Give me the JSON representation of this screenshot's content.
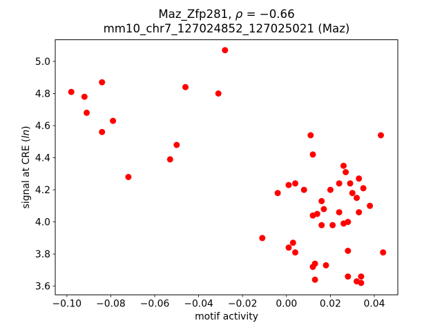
{
  "chart_data": {
    "type": "scatter",
    "title": "Maz_Zfp281, ρ = −0.66",
    "title_parts": {
      "prefix": "Maz_Zfp281, ",
      "rho": "ρ",
      "suffix": " = −0.66"
    },
    "subtitle": "mm10_chr7_127024852_127025021 (Maz)",
    "xlabel": "motif activity",
    "ylabel": "signal at CRE (ln)",
    "ylabel_parts": {
      "prefix": "signal at CRE (",
      "italic": "ln",
      "suffix": ")"
    },
    "marker_color": "#ff0000",
    "axis_color": "#000000",
    "grid": false,
    "legend": null,
    "xlim": [
      -0.1053,
      0.0507
    ],
    "ylim": [
      3.546,
      5.135
    ],
    "xtick_values": [
      -0.1,
      -0.08,
      -0.06,
      -0.04,
      -0.02,
      0.0,
      0.02,
      0.04
    ],
    "xtick_labels": [
      "−0.10",
      "−0.08",
      "−0.06",
      "−0.04",
      "−0.02",
      "0.00",
      "0.02",
      "0.04"
    ],
    "ytick_values": [
      3.6,
      3.8,
      4.0,
      4.2,
      4.4,
      4.6,
      4.8,
      5.0
    ],
    "ytick_labels": [
      "3.6",
      "3.8",
      "4.0",
      "4.2",
      "4.4",
      "4.6",
      "4.8",
      "5.0"
    ],
    "points": [
      [
        -0.098,
        4.81
      ],
      [
        -0.092,
        4.78
      ],
      [
        -0.091,
        4.68
      ],
      [
        -0.084,
        4.87
      ],
      [
        -0.084,
        4.56
      ],
      [
        -0.079,
        4.63
      ],
      [
        -0.072,
        4.28
      ],
      [
        -0.053,
        4.39
      ],
      [
        -0.05,
        4.48
      ],
      [
        -0.046,
        4.84
      ],
      [
        -0.031,
        4.8
      ],
      [
        -0.028,
        5.07
      ],
      [
        -0.011,
        3.9
      ],
      [
        -0.004,
        4.18
      ],
      [
        0.001,
        4.23
      ],
      [
        0.004,
        4.24
      ],
      [
        0.008,
        4.2
      ],
      [
        0.011,
        4.54
      ],
      [
        0.012,
        4.42
      ],
      [
        0.016,
        4.13
      ],
      [
        0.02,
        4.2
      ],
      [
        0.024,
        4.24
      ],
      [
        0.029,
        4.24
      ],
      [
        0.033,
        4.27
      ],
      [
        0.035,
        4.21
      ],
      [
        0.026,
        4.35
      ],
      [
        0.027,
        4.31
      ],
      [
        0.03,
        4.18
      ],
      [
        0.032,
        4.15
      ],
      [
        0.038,
        4.1
      ],
      [
        0.017,
        4.08
      ],
      [
        0.024,
        4.06
      ],
      [
        0.033,
        4.06
      ],
      [
        0.014,
        4.05
      ],
      [
        0.012,
        4.04
      ],
      [
        0.016,
        3.98
      ],
      [
        0.021,
        3.98
      ],
      [
        0.026,
        3.99
      ],
      [
        0.028,
        4.0
      ],
      [
        0.003,
        3.87
      ],
      [
        0.001,
        3.84
      ],
      [
        0.004,
        3.81
      ],
      [
        0.013,
        3.74
      ],
      [
        0.012,
        3.72
      ],
      [
        0.018,
        3.73
      ],
      [
        0.013,
        3.64
      ],
      [
        0.028,
        3.82
      ],
      [
        0.044,
        3.81
      ],
      [
        0.028,
        3.66
      ],
      [
        0.034,
        3.66
      ],
      [
        0.032,
        3.63
      ],
      [
        0.034,
        3.62
      ],
      [
        0.043,
        4.54
      ]
    ]
  }
}
